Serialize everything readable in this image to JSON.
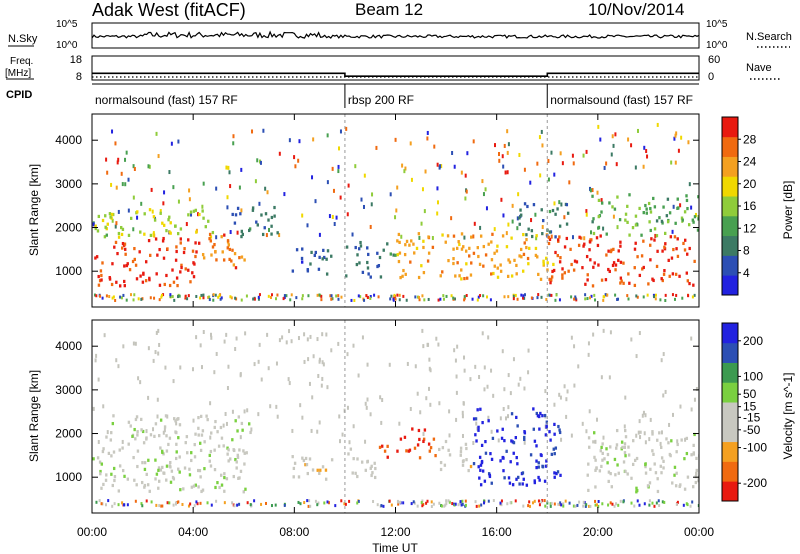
{
  "header": {
    "radar": "Adak West (fitACF)",
    "beam": "Beam 12",
    "date": "10/Nov/2014"
  },
  "labels": {
    "nsky": "N.Sky",
    "nsearch": "N.Search",
    "freq_l1": "Freq.",
    "freq_l2": "[MHz]",
    "nave": "Nave",
    "cpid": "CPID",
    "ten5": "10^5",
    "ten0": "10^0"
  },
  "colors": {
    "power": [
      "#2222e0",
      "#2c4fb4",
      "#3c7a64",
      "#48a050",
      "#8fcc3a",
      "#f0d800",
      "#f4a020",
      "#f06a10",
      "#e81a10"
    ],
    "velocity": [
      "#e81a10",
      "#f06a10",
      "#f4a020",
      "#c8c8c0",
      "#c8c8c0",
      "#7ad040",
      "#3c9a50",
      "#2c4fb4",
      "#2222e0"
    ],
    "gray_scatter": "#c4c4bc"
  },
  "chart_data": [
    {
      "type": "line",
      "name": "status",
      "panels": [
        "N.Sky / N.Search",
        "Freq. / Nave"
      ],
      "nsky_axis": [
        "10^0",
        "10^5"
      ],
      "freq_ticks": [
        8,
        18
      ],
      "nave_ticks": [
        0,
        60
      ],
      "freq_steps": [
        {
          "t0": 0.0,
          "t1": 10.0,
          "freq": 10.8
        },
        {
          "t0": 10.0,
          "t1": 18.0,
          "freq": 9.6
        },
        {
          "t0": 18.0,
          "t1": 24.0,
          "freq": 10.8
        }
      ]
    },
    {
      "type": "table",
      "name": "cpid",
      "segments": [
        {
          "t0": 0.0,
          "t1": 10.0,
          "label": "normalsound (fast) 157 RF"
        },
        {
          "t0": 10.0,
          "t1": 18.0,
          "label": "rbsp 200 RF"
        },
        {
          "t0": 18.0,
          "t1": 24.0,
          "label": "normalsound (fast) 157 RF"
        }
      ]
    },
    {
      "type": "heatmap",
      "name": "power",
      "ylabel": "Slant Range [km]",
      "yticks": [
        1000,
        2000,
        3000,
        4000
      ],
      "ylim": [
        180,
        4600
      ],
      "colorbar_label": "Power [dB]",
      "colorbar_ticks": [
        4,
        8,
        12,
        16,
        20,
        24,
        28
      ],
      "colorbar_range": [
        0,
        32
      ],
      "regions": [
        {
          "t0": 0.0,
          "t1": 4.3,
          "r0": 700,
          "r1": 1800,
          "value": 29
        },
        {
          "t0": 0.0,
          "t1": 4.8,
          "r0": 1800,
          "r1": 2450,
          "value": 17
        },
        {
          "t0": 4.3,
          "t1": 6.2,
          "r0": 1050,
          "r1": 1900,
          "value": 26
        },
        {
          "t0": 5.5,
          "t1": 7.3,
          "r0": 1750,
          "r1": 2500,
          "value": 8
        },
        {
          "t0": 7.7,
          "t1": 9.5,
          "r0": 950,
          "r1": 1550,
          "value": 6
        },
        {
          "t0": 10.0,
          "t1": 11.5,
          "r0": 900,
          "r1": 1700,
          "value": 7
        },
        {
          "t0": 11.5,
          "t1": 12.0,
          "r0": 1350,
          "r1": 1750,
          "value": 12
        },
        {
          "t0": 12.0,
          "t1": 18.2,
          "r0": 850,
          "r1": 1900,
          "value": 23
        },
        {
          "t0": 16.8,
          "t1": 18.8,
          "r0": 1800,
          "r1": 2600,
          "value": 8
        },
        {
          "t0": 18.0,
          "t1": 24.0,
          "r0": 700,
          "r1": 1850,
          "value": 29
        },
        {
          "t0": 19.7,
          "t1": 24.0,
          "r0": 1850,
          "r1": 2800,
          "value": 13
        }
      ]
    },
    {
      "type": "heatmap",
      "name": "velocity",
      "ylabel": "Slant Range [km]",
      "yticks": [
        1000,
        2000,
        3000,
        4000
      ],
      "ylim": [
        180,
        4600
      ],
      "colorbar_label": "Velocity [m s^-1]",
      "colorbar_ticks": [
        -200,
        -100,
        -50,
        -15,
        15,
        50,
        100,
        200
      ],
      "colorbar_range": [
        -250,
        250
      ],
      "regions": [
        {
          "t0": 0.0,
          "t1": 6.3,
          "r0": 700,
          "r1": 2450,
          "value": 0
        },
        {
          "t0": 7.7,
          "t1": 9.5,
          "r0": 950,
          "r1": 1550,
          "value": -60
        },
        {
          "t0": 10.0,
          "t1": 11.3,
          "r0": 950,
          "r1": 1700,
          "value": -50
        },
        {
          "t0": 11.3,
          "t1": 12.0,
          "r0": 1350,
          "r1": 1750,
          "value": -180
        },
        {
          "t0": 12.0,
          "t1": 13.6,
          "r0": 1450,
          "r1": 2150,
          "value": -200
        },
        {
          "t0": 13.6,
          "t1": 15.0,
          "r0": 1150,
          "r1": 1900,
          "value": -40
        },
        {
          "t0": 15.0,
          "t1": 18.6,
          "r0": 850,
          "r1": 2600,
          "value": 210
        },
        {
          "t0": 19.5,
          "t1": 24.0,
          "r0": 700,
          "r1": 2150,
          "value": 0
        }
      ]
    }
  ],
  "x_axis": {
    "title": "Time UT",
    "ticks": [
      "00:00",
      "04:00",
      "08:00",
      "12:00",
      "16:00",
      "20:00",
      "00:00"
    ],
    "range_hours": [
      0,
      24
    ]
  }
}
